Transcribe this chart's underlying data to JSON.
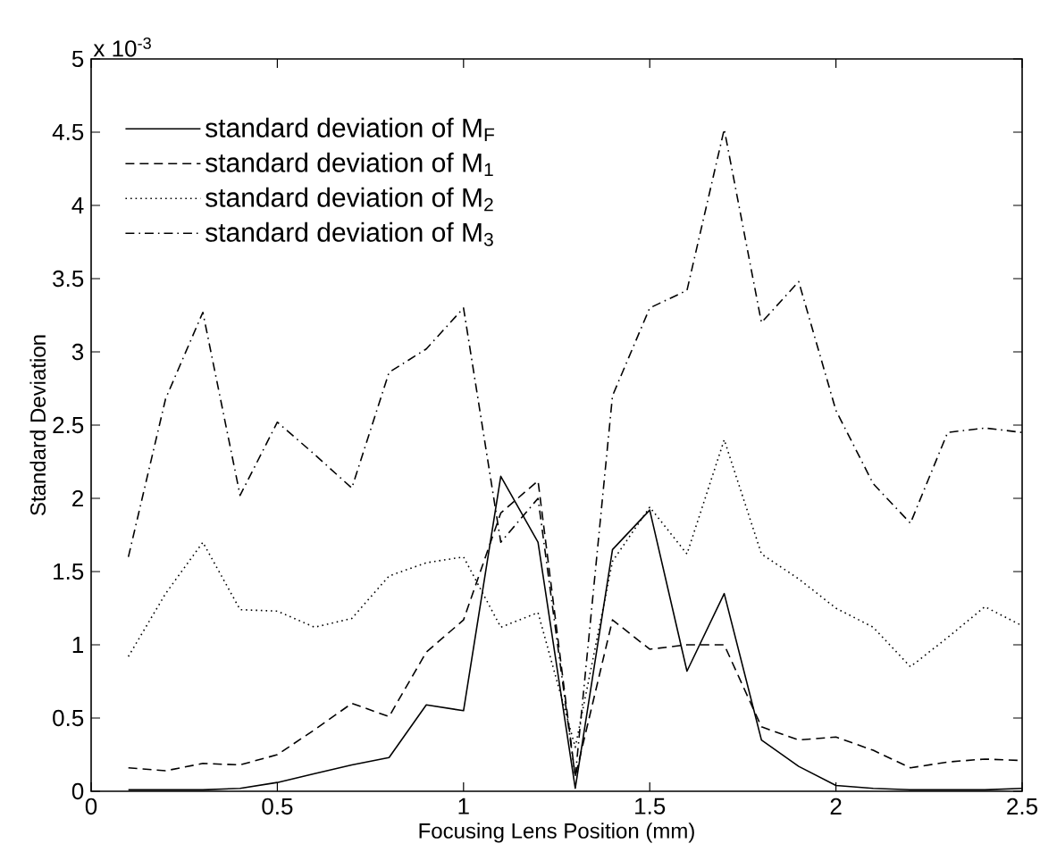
{
  "chart_data": {
    "type": "line",
    "xlabel": "Focusing Lens Position (mm)",
    "ylabel": "Standard Deviation",
    "annotations": [
      "x 10$^{-3}$"
    ],
    "xlim": [
      0,
      2.5
    ],
    "ylim": [
      0,
      5
    ],
    "xticks": [
      0,
      0.5,
      1,
      1.5,
      2,
      2.5
    ],
    "yticks": [
      0,
      0.5,
      1,
      1.5,
      2,
      2.5,
      3,
      3.5,
      4,
      4.5,
      5
    ],
    "grid": false,
    "legend": "top left",
    "marker": "none",
    "x": [
      0.1,
      0.2,
      0.3,
      0.4,
      0.5,
      0.6,
      0.7,
      0.8,
      0.9,
      1.0,
      1.1,
      1.2,
      1.3,
      1.4,
      1.5,
      1.6,
      1.7,
      1.8,
      1.9,
      2.0,
      2.1,
      2.2,
      2.3,
      2.4,
      2.5
    ],
    "series": [
      {
        "name": "standard deviation of M$_{F}$",
        "color": "#000000",
        "line_style": "solid",
        "values": [
          0.01,
          0.01,
          0.01,
          0.02,
          0.06,
          0.12,
          0.18,
          0.23,
          0.59,
          0.55,
          2.15,
          1.7,
          0.02,
          1.65,
          1.92,
          0.82,
          1.35,
          0.35,
          0.17,
          0.04,
          0.02,
          0.01,
          0.01,
          0.01,
          0.02
        ]
      },
      {
        "name": "standard deviation of M$_{1}$",
        "color": "#000000",
        "line_style": "dashed",
        "values": [
          0.16,
          0.14,
          0.19,
          0.18,
          0.25,
          0.42,
          0.6,
          0.51,
          0.95,
          1.17,
          1.9,
          2.12,
          0.1,
          1.17,
          0.97,
          1.0,
          1.0,
          0.44,
          0.35,
          0.37,
          0.28,
          0.16,
          0.2,
          0.22,
          0.21
        ]
      },
      {
        "name": "standard deviation of M$_{2}$",
        "color": "#000000",
        "line_style": "dotted",
        "values": [
          0.92,
          1.35,
          1.7,
          1.24,
          1.23,
          1.12,
          1.18,
          1.47,
          1.56,
          1.6,
          1.12,
          1.22,
          0.3,
          1.57,
          1.94,
          1.62,
          2.4,
          1.62,
          1.45,
          1.25,
          1.12,
          0.85,
          1.05,
          1.26,
          1.13
        ]
      },
      {
        "name": "standard deviation of M$_{3}$",
        "color": "#000000",
        "line_style": "dashdot",
        "values": [
          1.6,
          2.68,
          3.27,
          2.02,
          2.52,
          2.3,
          2.07,
          2.86,
          3.02,
          3.3,
          1.7,
          2.0,
          0.1,
          2.7,
          3.3,
          3.42,
          4.52,
          3.2,
          3.48,
          2.6,
          2.1,
          1.83,
          2.45,
          2.48,
          2.45
        ]
      }
    ]
  }
}
